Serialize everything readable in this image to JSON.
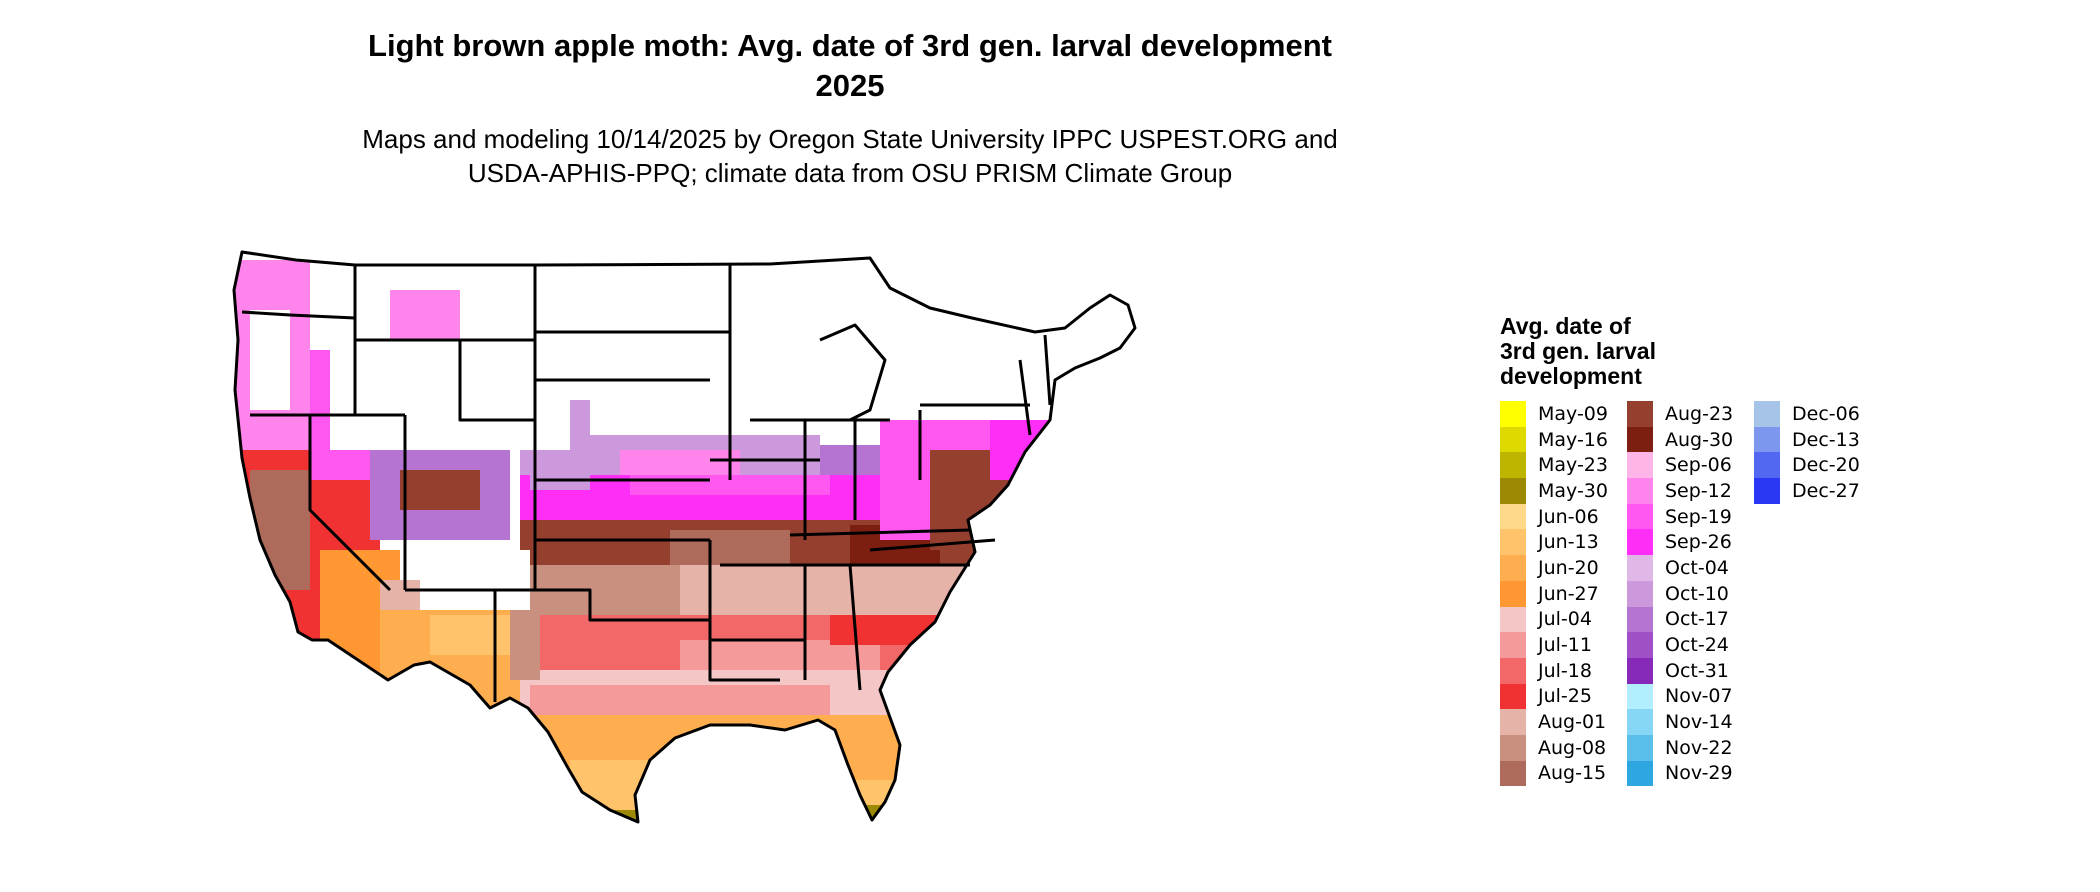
{
  "header": {
    "title_line1": "Light brown apple moth: Avg. date of 3rd gen. larval development",
    "title_line2": "2025",
    "subtitle_line1": "Maps and modeling 10/14/2025 by Oregon State University IPPC USPEST.ORG and",
    "subtitle_line2": "USDA-APHIS-PPQ; climate data from OSU PRISM Climate Group"
  },
  "legend": {
    "title_line1": "Avg. date of",
    "title_line2": "3rd gen. larval",
    "title_line3": "development",
    "columns": [
      [
        {
          "label": "May-09",
          "color": "#FFFF00"
        },
        {
          "label": "May-16",
          "color": "#DEDA00"
        },
        {
          "label": "May-23",
          "color": "#BDB500"
        },
        {
          "label": "May-30",
          "color": "#9C8A05"
        },
        {
          "label": "Jun-06",
          "color": "#FFD98A"
        },
        {
          "label": "Jun-13",
          "color": "#FFC46B"
        },
        {
          "label": "Jun-20",
          "color": "#FFAE4F"
        },
        {
          "label": "Jun-27",
          "color": "#FF9733"
        },
        {
          "label": "Jul-04",
          "color": "#F5C6C6"
        },
        {
          "label": "Jul-11",
          "color": "#F49A9A"
        },
        {
          "label": "Jul-18",
          "color": "#F26767"
        },
        {
          "label": "Jul-25",
          "color": "#F03232"
        },
        {
          "label": "Aug-01",
          "color": "#E6B3A8"
        },
        {
          "label": "Aug-08",
          "color": "#C99080"
        },
        {
          "label": "Aug-15",
          "color": "#AE6A5A"
        }
      ],
      [
        {
          "label": "Aug-23",
          "color": "#95402F"
        },
        {
          "label": "Aug-30",
          "color": "#7C1F10"
        },
        {
          "label": "Sep-06",
          "color": "#FFB5E8"
        },
        {
          "label": "Sep-12",
          "color": "#FF84EC"
        },
        {
          "label": "Sep-19",
          "color": "#FF57F0"
        },
        {
          "label": "Sep-26",
          "color": "#FF2EF7"
        },
        {
          "label": "Oct-04",
          "color": "#E0B8E8"
        },
        {
          "label": "Oct-10",
          "color": "#CC99DD"
        },
        {
          "label": "Oct-17",
          "color": "#B574D1"
        },
        {
          "label": "Oct-24",
          "color": "#A050C6"
        },
        {
          "label": "Oct-31",
          "color": "#8628B8"
        },
        {
          "label": "Nov-07",
          "color": "#B3EEFF"
        },
        {
          "label": "Nov-14",
          "color": "#87D6F5"
        },
        {
          "label": "Nov-22",
          "color": "#5BBFEA"
        },
        {
          "label": "Nov-29",
          "color": "#2EA6E0"
        }
      ],
      [
        {
          "label": "Dec-06",
          "color": "#A6C4E8"
        },
        {
          "label": "Dec-13",
          "color": "#7C97ED"
        },
        {
          "label": "Dec-20",
          "color": "#5368F0"
        },
        {
          "label": "Dec-27",
          "color": "#2A38F5"
        }
      ]
    ]
  }
}
